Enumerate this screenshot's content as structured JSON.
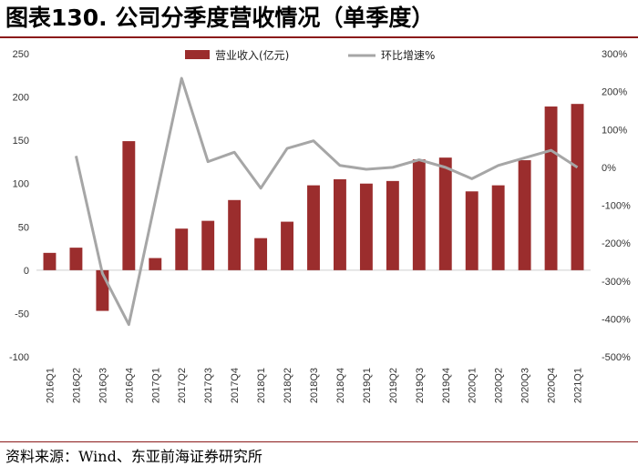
{
  "title": "图表130. 公司分季度营收情况（单季度）",
  "source": "资料来源：Wind、东亚前海证券研究所",
  "colors": {
    "bar": "#9b2d2d",
    "line": "#a6a6a6",
    "rule": "#8b1a1a"
  },
  "chart_data": {
    "type": "bar",
    "categories": [
      "2016Q1",
      "2016Q2",
      "2016Q3",
      "2016Q4",
      "2017Q1",
      "2017Q2",
      "2017Q3",
      "2017Q4",
      "2018Q1",
      "2018Q2",
      "2018Q3",
      "2018Q4",
      "2019Q1",
      "2019Q2",
      "2019Q3",
      "2019Q4",
      "2020Q1",
      "2020Q2",
      "2020Q3",
      "2020Q4",
      "2021Q1"
    ],
    "series": [
      {
        "name": "营业收入(亿元)",
        "type": "bar",
        "axis": "left",
        "values": [
          20,
          26,
          -47,
          149,
          14,
          48,
          57,
          81,
          37,
          56,
          98,
          105,
          100,
          103,
          128,
          130,
          91,
          98,
          127,
          189,
          192
        ]
      },
      {
        "name": "环比增速%",
        "type": "line",
        "axis": "right",
        "values": [
          null,
          30,
          -280,
          -415,
          -90,
          235,
          15,
          40,
          -55,
          50,
          70,
          5,
          -5,
          0,
          20,
          0,
          -30,
          5,
          25,
          45,
          0
        ]
      }
    ],
    "y_left": {
      "min": -100,
      "max": 250,
      "ticks": [
        -100,
        -50,
        0,
        50,
        100,
        150,
        200,
        250
      ]
    },
    "y_right": {
      "min": -500,
      "max": 300,
      "ticks": [
        "-500%",
        "-400%",
        "-300%",
        "-200%",
        "-100%",
        "0%",
        "100%",
        "200%",
        "300%"
      ]
    },
    "legend_position": "top-center",
    "grid": false
  }
}
